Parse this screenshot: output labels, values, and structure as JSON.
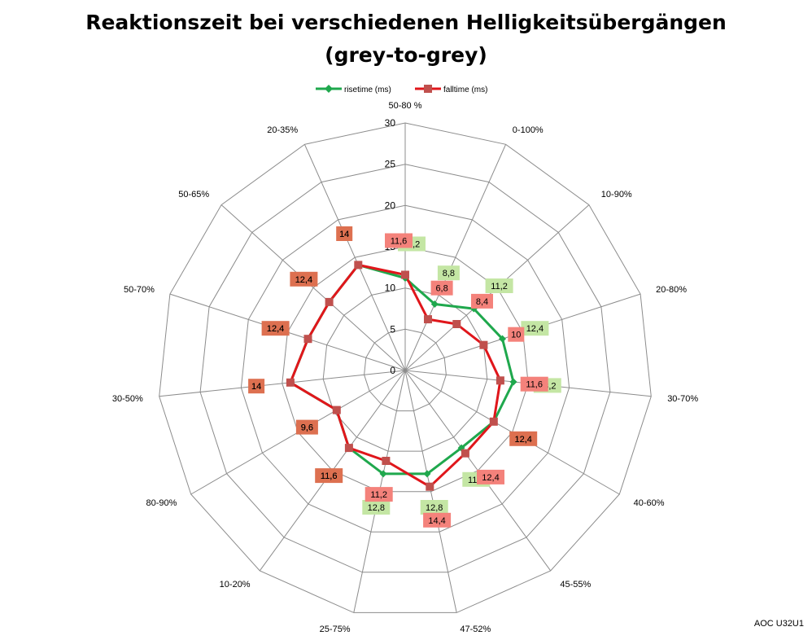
{
  "title": {
    "line1": "Reaktionszeit bei verschiedenen Helligkeitsübergängen",
    "line2": "(grey-to-grey)"
  },
  "watermark": "AOC U32U1",
  "colors": {
    "rise": "#1fa84d",
    "fall": "#e0161b",
    "rise_marker": "#1fa84d",
    "fall_marker": "#c0504d",
    "rise_label_bg": "#c4e6a4",
    "fall_label_bg": "#f4827b",
    "overlap_label_bg": "#dd7050",
    "grid": "#8c8c8c"
  },
  "chart_data": {
    "type": "radar",
    "categories": [
      "50-80 %",
      "0-100%",
      "10-90%",
      "20-80%",
      "30-70%",
      "40-60%",
      "45-55%",
      "47-52%",
      "25-75%",
      "10-20%",
      "80-90%",
      "30-50%",
      "50-70%",
      "50-65%",
      "20-35%"
    ],
    "series": [
      {
        "name": "risetime (ms)",
        "values": [
          11.2,
          8.8,
          11.2,
          12.4,
          13.2,
          12.4,
          11.6,
          12.8,
          12.8,
          11.6,
          9.6,
          14,
          12.4,
          12.4,
          14
        ]
      },
      {
        "name": "falltime (ms)",
        "values": [
          11.6,
          6.8,
          8.4,
          10,
          11.6,
          12.4,
          12.4,
          14.4,
          11.2,
          11.6,
          9.6,
          14,
          12.4,
          12.4,
          14
        ]
      }
    ],
    "series_labels": [
      [
        "11,2",
        "8,8",
        "11,2",
        "12,4",
        "13,2",
        "12,4",
        "11,6",
        "12,8",
        "12,8",
        "11,6",
        "9,6",
        "14",
        "12,4",
        "12,4",
        "14"
      ],
      [
        "11,6",
        "6,8",
        "8,4",
        "10",
        "11,6",
        "12,4",
        "12,4",
        "14,4",
        "11,2",
        "11,6",
        "9,6",
        "14",
        "12,4",
        "12,4",
        "14"
      ]
    ],
    "r_ticks": [
      "0",
      "5",
      "10",
      "15",
      "20",
      "25",
      "30"
    ],
    "rlim": [
      0,
      30
    ],
    "grid": true,
    "legend_position": "top"
  }
}
